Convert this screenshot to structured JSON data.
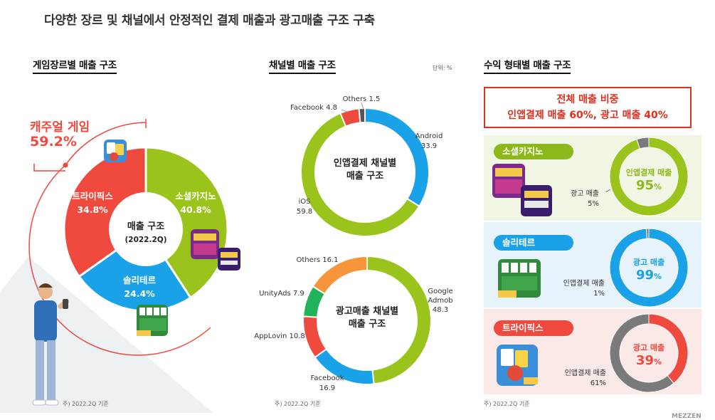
{
  "page": {
    "title": "다양한 장르 및 채널에서 안정적인 결제 매출과 광고매출 구조 구축",
    "footnote": "주) 2022.2Q 기준",
    "unit": "단위: %",
    "brand": "MEZZEN"
  },
  "genre_section": {
    "title": "게임장르별 매출 구조",
    "center_label": "매출 구조",
    "center_sub": "(2022.2Q)",
    "casual_label": "캐주얼 게임",
    "casual_value": "59.2%",
    "slices": [
      {
        "name": "소셜카지노",
        "value": 40.8,
        "label": "40.8%",
        "color": "#9ac31c"
      },
      {
        "name": "솔리테르",
        "value": 24.4,
        "label": "24.4%",
        "color": "#19a2e8"
      },
      {
        "name": "트라이픽스",
        "value": 34.8,
        "label": "34.8%",
        "color": "#f04a3e"
      }
    ]
  },
  "channel_section": {
    "title": "채널별 매출 구조",
    "iap_center": [
      "인앱결제 채널별",
      "매출 구조"
    ],
    "ad_center": [
      "광고매출 채널별",
      "매출 구조"
    ]
  },
  "revenue_section": {
    "title": "수익 형태별 매출 구조",
    "summary_line1": "전체 매출 비중",
    "summary_line2": "인앱결제 매출 60%, 광고 매출 40%",
    "rows": [
      {
        "genre": "소셜카지노",
        "main_label": "인앱결제 매출",
        "main_value": "95",
        "sub_label": "광고 매출",
        "sub_value": "5%",
        "main_pct": 95,
        "main_color": "#9ac31c",
        "sub_color": "#7a7a7a",
        "bg": "#f1f6e4",
        "pill_color": "#8cb81a",
        "text_color": "#8cb81a"
      },
      {
        "genre": "솔리테르",
        "main_label": "광고 매출",
        "main_value": "99",
        "sub_label": "인앱결제 매출",
        "sub_value": "1%",
        "main_pct": 99,
        "main_color": "#19a2e8",
        "sub_color": "#7a7a7a",
        "bg": "#e6f3fb",
        "pill_color": "#19a2e8",
        "text_color": "#19a2e8"
      },
      {
        "genre": "트라이픽스",
        "main_label": "광고 매출",
        "main_value": "39",
        "sub_label": "인앱결제 매출",
        "sub_value": "61%",
        "main_pct": 39,
        "main_color": "#f04a3e",
        "sub_color": "#7a7a7a",
        "bg": "#fbe9e8",
        "pill_color": "#f04a3e",
        "text_color": "#f04a3e"
      }
    ],
    "percent_sign": "%"
  },
  "chart_data": [
    {
      "type": "pie",
      "title": "게임장르별 매출 구조",
      "categories": [
        "소셜카지노",
        "솔리테르",
        "트라이픽스"
      ],
      "values": [
        40.8,
        24.4,
        34.8
      ],
      "annotations": [
        "캐주얼 게임 59.2%"
      ]
    },
    {
      "type": "pie",
      "title": "인앱결제 채널별 매출 구조",
      "categories": [
        "Android",
        "iOS",
        "Facebook",
        "Others"
      ],
      "values": [
        33.9,
        59.8,
        4.8,
        1.5
      ],
      "labels": [
        "Android\n33.9",
        "iOS\n59.8",
        "Facebook 4.8",
        "Others 1.5"
      ],
      "colors": [
        "#19a2e8",
        "#9ac31c",
        "#f04a3e",
        "#555555"
      ]
    },
    {
      "type": "pie",
      "title": "광고매출 채널별 매출 구조",
      "categories": [
        "Google Admob",
        "Facebook",
        "AppLovin",
        "UnityAds",
        "Others"
      ],
      "values": [
        48.3,
        16.9,
        10.8,
        7.9,
        16.1
      ],
      "labels": [
        "Google\nAdmob\n48.3",
        "Facebook\n16.9",
        "AppLovin 10.8",
        "UnityAds 7.9",
        "Others 16.1"
      ],
      "colors": [
        "#9ac31c",
        "#19a2e8",
        "#f04a3e",
        "#21b35a",
        "#f7953a"
      ]
    }
  ]
}
